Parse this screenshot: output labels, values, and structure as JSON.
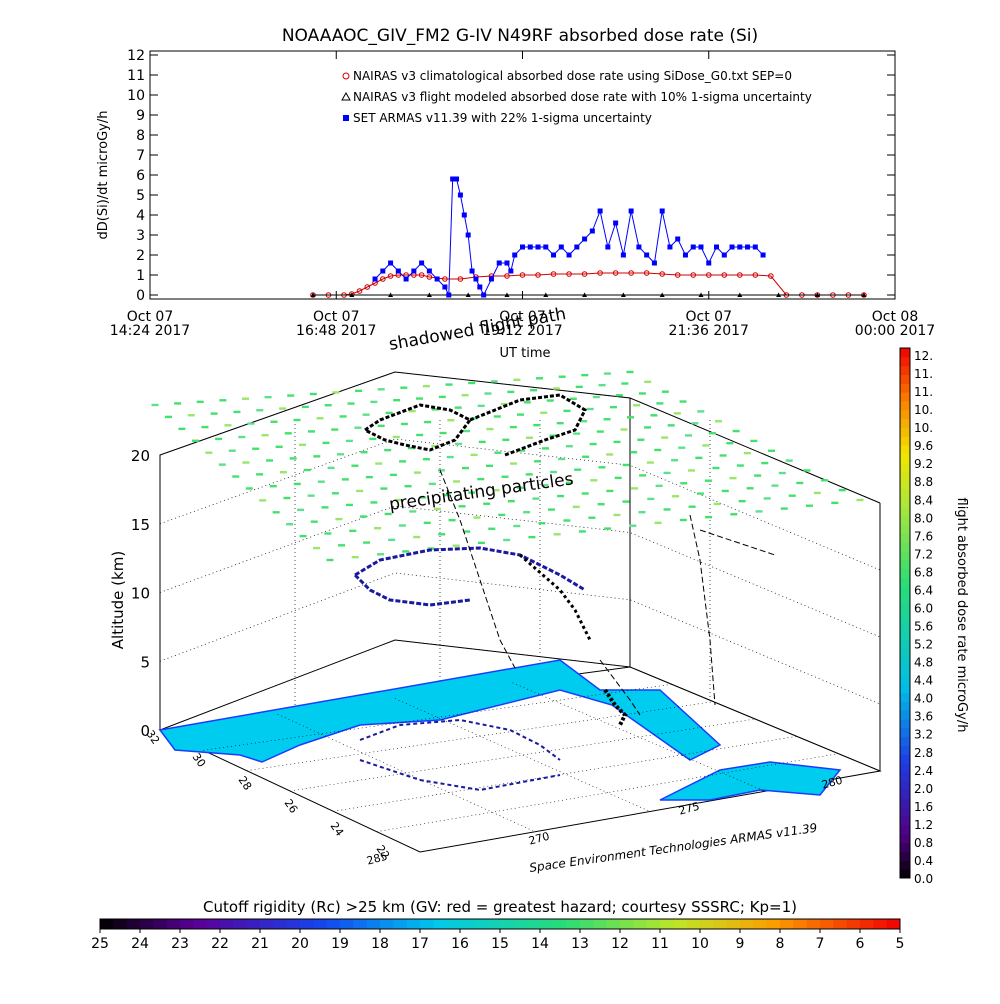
{
  "figure": {
    "title": "NOAAAOC_GIV_FM2 G-IV    N49RF   absorbed dose rate (Si)",
    "credit": "Space Environment Technologies ARMAS v11.39"
  },
  "chart_data": [
    {
      "type": "scatter",
      "panel": "time-series",
      "title": "NOAAAOC_GIV_FM2 G-IV    N49RF   absorbed dose rate (Si)",
      "xlabel": "UT time",
      "ylabel": "dD(Si)/dt microGy/h",
      "xlim_hours": [
        14.4,
        24.0
      ],
      "ylim": [
        0,
        12
      ],
      "yticks": [
        0,
        1,
        2,
        3,
        4,
        5,
        6,
        7,
        8,
        9,
        10,
        11,
        12
      ],
      "xticks": [
        {
          "h": 14.4,
          "l1": "Oct 07",
          "l2": "14:24 2017"
        },
        {
          "h": 16.8,
          "l1": "Oct 07",
          "l2": "16:48 2017"
        },
        {
          "h": 19.2,
          "l1": "Oct 07",
          "l2": "19:12 2017"
        },
        {
          "h": 21.6,
          "l1": "Oct 07",
          "l2": "21:36 2017"
        },
        {
          "h": 24.0,
          "l1": "Oct 08",
          "l2": "00:00 2017"
        }
      ],
      "legend": [
        {
          "label": "NAIRAS v3 climatological absorbed dose rate using SiDose_G0.txt SEP=0",
          "color": "#d00000",
          "marker": "circle"
        },
        {
          "label": "NAIRAS v3 flight modeled absorbed dose rate with 10% 1-sigma uncertainty",
          "color": "#000000",
          "marker": "triangle"
        },
        {
          "label": "SET ARMAS v11.39 with 22% 1-sigma uncertainty",
          "color": "#0000ff",
          "marker": "square"
        }
      ],
      "series": [
        {
          "name": "NAIRAS v3 climatological absorbed dose rate using SiDose_G0.txt SEP=0",
          "color": "#d00000",
          "x_hours": [
            16.5,
            16.7,
            16.9,
            17.0,
            17.1,
            17.2,
            17.3,
            17.4,
            17.5,
            17.6,
            17.7,
            17.8,
            17.9,
            18.0,
            18.2,
            18.4,
            18.6,
            18.8,
            19.0,
            19.2,
            19.4,
            19.6,
            19.8,
            20.0,
            20.2,
            20.4,
            20.6,
            20.8,
            21.0,
            21.2,
            21.4,
            21.6,
            21.8,
            22.0,
            22.2,
            22.4,
            22.6,
            22.8,
            23.0,
            23.2,
            23.4,
            23.6
          ],
          "values": [
            0.0,
            0.0,
            0.0,
            0.05,
            0.2,
            0.4,
            0.6,
            0.8,
            0.95,
            1.0,
            1.0,
            1.0,
            1.0,
            0.9,
            0.8,
            0.8,
            0.9,
            0.95,
            0.95,
            1.0,
            1.0,
            1.05,
            1.05,
            1.05,
            1.1,
            1.1,
            1.1,
            1.1,
            1.05,
            1.0,
            1.0,
            1.0,
            1.0,
            1.0,
            1.0,
            0.95,
            0.0,
            0.0,
            0.0,
            0.0,
            0.0,
            0.0
          ]
        },
        {
          "name": "NAIRAS v3 flight modeled absorbed dose rate with 10% 1-sigma uncertainty",
          "color": "#000000",
          "x_hours": [
            16.5,
            17.0,
            17.5,
            18.0,
            18.5,
            19.0,
            19.5,
            20.0,
            20.5,
            21.0,
            21.5,
            22.0,
            22.5,
            23.0,
            23.6
          ],
          "values": [
            0,
            0,
            0,
            0,
            0,
            0,
            0,
            0,
            0,
            0,
            0,
            0,
            0,
            0,
            0
          ]
        },
        {
          "name": "SET ARMAS v11.39 with 22% 1-sigma uncertainty",
          "color": "#0000ff",
          "x_hours": [
            17.3,
            17.4,
            17.5,
            17.6,
            17.7,
            17.8,
            17.9,
            18.0,
            18.1,
            18.2,
            18.25,
            18.3,
            18.35,
            18.4,
            18.45,
            18.5,
            18.55,
            18.6,
            18.65,
            18.7,
            18.8,
            18.9,
            19.0,
            19.05,
            19.1,
            19.2,
            19.3,
            19.4,
            19.5,
            19.6,
            19.7,
            19.8,
            19.9,
            20.0,
            20.1,
            20.2,
            20.3,
            20.4,
            20.5,
            20.6,
            20.7,
            20.8,
            20.9,
            21.0,
            21.1,
            21.2,
            21.3,
            21.4,
            21.5,
            21.6,
            21.7,
            21.8,
            21.9,
            22.0,
            22.1,
            22.2,
            22.3
          ],
          "values": [
            0.8,
            1.2,
            1.6,
            1.2,
            0.8,
            1.2,
            1.6,
            1.2,
            0.8,
            0.4,
            0.0,
            5.8,
            5.8,
            5.0,
            4.0,
            3.0,
            1.2,
            0.8,
            0.4,
            0.0,
            0.8,
            1.6,
            1.6,
            1.2,
            2.0,
            2.4,
            2.4,
            2.4,
            2.4,
            2.0,
            2.4,
            2.0,
            2.4,
            2.8,
            3.2,
            4.2,
            2.4,
            3.6,
            2.0,
            4.2,
            2.4,
            2.0,
            1.6,
            4.2,
            2.4,
            2.8,
            2.0,
            2.4,
            2.4,
            1.6,
            2.4,
            2.0,
            2.4,
            2.4,
            2.4,
            2.4,
            2.0
          ]
        }
      ]
    },
    {
      "type": "scatter",
      "panel": "3d-flight-path",
      "ylabel": "Altitude (km)",
      "zticks": [
        0,
        5,
        10,
        15,
        20
      ],
      "lat_ticks": [
        32,
        30,
        28,
        26,
        24,
        22
      ],
      "lon_ticks": [
        270,
        275,
        280
      ],
      "lon_tick_285": "285",
      "lon_tick_275b": "275",
      "annotations": [
        "precipitating particles",
        "shadowed flight path"
      ]
    },
    {
      "type": "heatmap",
      "panel": "colorbar-dose",
      "label": "flight absorbed dose rate microGy/h",
      "ticks": [
        "12.",
        "11.",
        "11.",
        "10.",
        "10.",
        "9.6",
        "9.2",
        "8.8",
        "8.4",
        "8.0",
        "7.6",
        "7.2",
        "6.8",
        "6.4",
        "6.0",
        "5.6",
        "5.2",
        "4.8",
        "4.4",
        "4.0",
        "3.6",
        "3.2",
        "2.8",
        "2.4",
        "2.0",
        "1.6",
        "1.2",
        "0.8",
        "0.4",
        "0.0"
      ],
      "range": [
        0,
        12
      ]
    },
    {
      "type": "heatmap",
      "panel": "colorbar-rigidity",
      "label": "Cutoff rigidity (Rc) >25 km (GV: red = greatest hazard; courtesy SSSRC; Kp=1)",
      "ticks": [
        "25",
        "24",
        "23",
        "22",
        "21",
        "20",
        "19",
        "18",
        "17",
        "16",
        "15",
        "14",
        "13",
        "12",
        "11",
        "10",
        "9",
        "8",
        "7",
        "6",
        "5"
      ]
    }
  ]
}
